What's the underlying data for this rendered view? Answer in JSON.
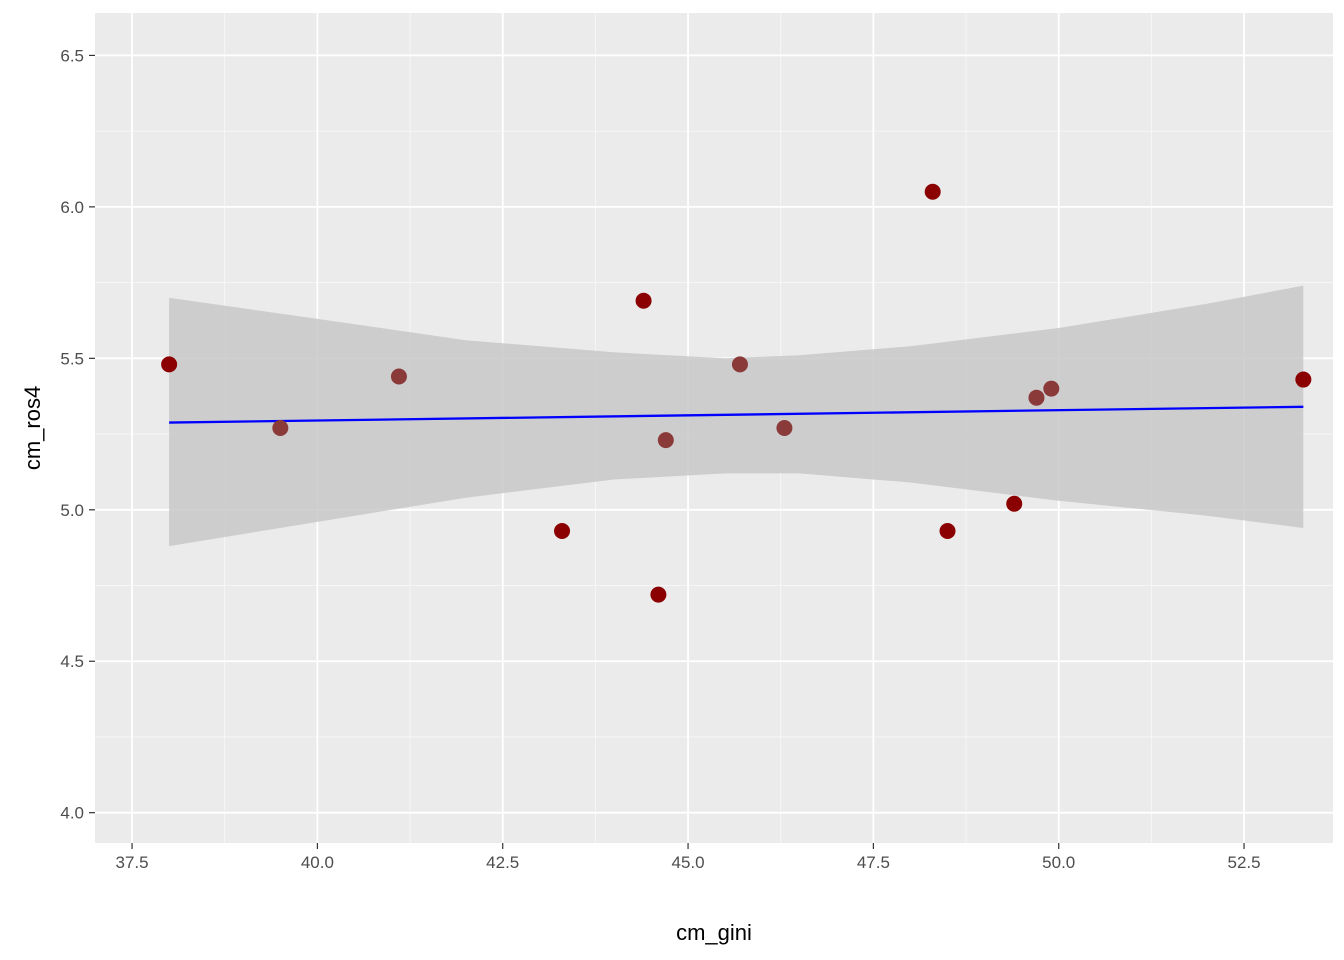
{
  "chart_data": {
    "type": "scatter",
    "xlabel": "cm_gini",
    "ylabel": "cm_ros4",
    "xlim": [
      37.0,
      53.7
    ],
    "ylim": [
      3.9,
      6.64
    ],
    "x_ticks": [
      37.5,
      40.0,
      42.5,
      45.0,
      47.5,
      50.0,
      52.5
    ],
    "x_tick_labels": [
      "37.5",
      "40.0",
      "42.5",
      "45.0",
      "47.5",
      "50.0",
      "52.5"
    ],
    "y_ticks": [
      4.0,
      4.5,
      5.0,
      5.5,
      6.0,
      6.5
    ],
    "y_tick_labels": [
      "4.0",
      "4.5",
      "5.0",
      "5.5",
      "6.0",
      "6.5"
    ],
    "grid": true,
    "points": [
      {
        "x": 38.0,
        "y": 5.48,
        "color": "#8b0000"
      },
      {
        "x": 39.5,
        "y": 5.27,
        "color": "#8b3a3a"
      },
      {
        "x": 41.1,
        "y": 5.44,
        "color": "#8b3a3a"
      },
      {
        "x": 43.3,
        "y": 4.93,
        "color": "#8b0000"
      },
      {
        "x": 44.4,
        "y": 5.69,
        "color": "#8b0000"
      },
      {
        "x": 44.6,
        "y": 4.72,
        "color": "#8b0000"
      },
      {
        "x": 44.7,
        "y": 5.23,
        "color": "#8b3a3a"
      },
      {
        "x": 45.7,
        "y": 5.48,
        "color": "#8b3a3a"
      },
      {
        "x": 46.3,
        "y": 5.27,
        "color": "#8b3a3a"
      },
      {
        "x": 48.3,
        "y": 6.05,
        "color": "#8b0000"
      },
      {
        "x": 48.5,
        "y": 4.93,
        "color": "#8b0000"
      },
      {
        "x": 49.4,
        "y": 5.02,
        "color": "#8b0000"
      },
      {
        "x": 49.7,
        "y": 5.37,
        "color": "#8b3a3a"
      },
      {
        "x": 49.9,
        "y": 5.4,
        "color": "#8b3a3a"
      },
      {
        "x": 53.3,
        "y": 5.43,
        "color": "#8b0000"
      }
    ],
    "trend_line": {
      "x": [
        38.0,
        53.3
      ],
      "y": [
        5.288,
        5.34
      ],
      "color": "#0000ff"
    },
    "confidence_band": {
      "color": "#c8c8c8",
      "x": [
        38.0,
        40.0,
        42.0,
        44.0,
        45.5,
        46.5,
        48.0,
        50.0,
        52.0,
        53.3
      ],
      "lower": [
        4.88,
        4.96,
        5.04,
        5.1,
        5.12,
        5.12,
        5.09,
        5.03,
        4.98,
        4.94
      ],
      "upper": [
        5.7,
        5.63,
        5.56,
        5.52,
        5.5,
        5.51,
        5.54,
        5.6,
        5.68,
        5.74
      ]
    },
    "colors": {
      "panel_background": "#ebebeb",
      "grid_major": "#ffffff",
      "axis_text": "#4d4d4d"
    }
  }
}
